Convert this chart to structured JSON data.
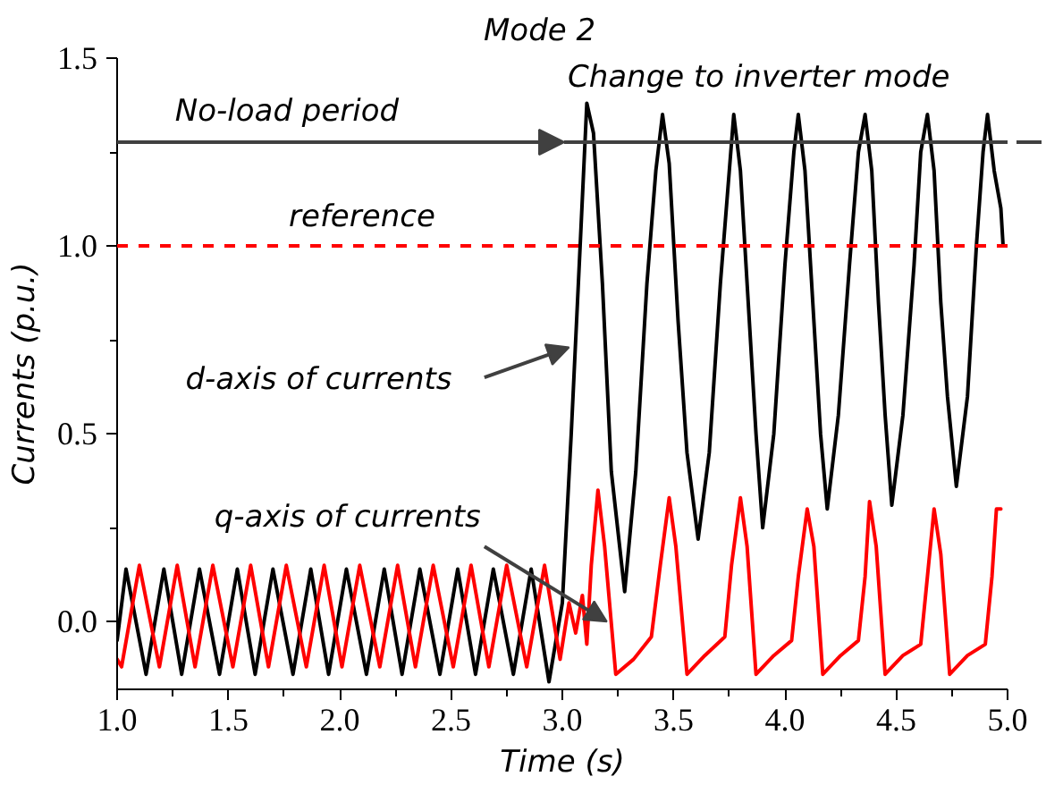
{
  "chart_data": {
    "type": "line",
    "xlabel": "Time (s)",
    "ylabel": "Currents (p.u.)",
    "xlim": [
      1.0,
      5.0
    ],
    "ylim": [
      -0.18,
      1.5
    ],
    "xticks": [
      {
        "value": 1.0,
        "label": "1.0"
      },
      {
        "value": 1.5,
        "label": "1.5"
      },
      {
        "value": 2.0,
        "label": "2.0"
      },
      {
        "value": 2.5,
        "label": "2.5"
      },
      {
        "value": 3.0,
        "label": "3.0"
      },
      {
        "value": 3.5,
        "label": "3.5"
      },
      {
        "value": 4.0,
        "label": "4.0"
      },
      {
        "value": 4.5,
        "label": "4.5"
      },
      {
        "value": 5.0,
        "label": "5.0"
      }
    ],
    "yticks": [
      {
        "value": 0.0,
        "label": "0.0"
      },
      {
        "value": 0.5,
        "label": "0.5"
      },
      {
        "value": 1.0,
        "label": "1.0"
      },
      {
        "value": 1.5,
        "label": "1.5"
      }
    ],
    "grid": false,
    "marker": "none",
    "line_style": "solid",
    "series": [
      {
        "color": "#000000",
        "x": [
          1.0,
          1.04,
          1.13,
          1.21,
          1.29,
          1.37,
          1.46,
          1.54,
          1.62,
          1.7,
          1.79,
          1.87,
          1.95,
          2.03,
          2.12,
          2.2,
          2.28,
          2.36,
          2.45,
          2.53,
          2.61,
          2.69,
          2.78,
          2.86,
          2.94,
          3.0,
          3.04,
          3.08,
          3.11,
          3.14,
          3.18,
          3.22,
          3.28,
          3.33,
          3.38,
          3.42,
          3.45,
          3.48,
          3.52,
          3.56,
          3.61,
          3.66,
          3.71,
          3.75,
          3.77,
          3.8,
          3.84,
          3.87,
          3.9,
          3.95,
          4.0,
          4.04,
          4.06,
          4.09,
          4.13,
          4.16,
          4.19,
          4.24,
          4.29,
          4.33,
          4.36,
          4.39,
          4.42,
          4.45,
          4.48,
          4.53,
          4.58,
          4.61,
          4.64,
          4.67,
          4.7,
          4.73,
          4.77,
          4.82,
          4.86,
          4.89,
          4.91,
          4.94,
          4.97,
          4.98
        ],
        "values": [
          -0.05,
          0.14,
          -0.14,
          0.14,
          -0.14,
          0.14,
          -0.14,
          0.14,
          -0.14,
          0.14,
          -0.14,
          0.14,
          -0.14,
          0.14,
          -0.14,
          0.14,
          -0.14,
          0.14,
          -0.14,
          0.14,
          -0.14,
          0.14,
          -0.14,
          0.14,
          -0.16,
          0.05,
          0.5,
          1.0,
          1.38,
          1.3,
          0.9,
          0.4,
          0.08,
          0.4,
          0.9,
          1.2,
          1.35,
          1.22,
          0.8,
          0.45,
          0.22,
          0.45,
          0.9,
          1.2,
          1.35,
          1.2,
          0.8,
          0.5,
          0.25,
          0.5,
          0.95,
          1.25,
          1.35,
          1.2,
          0.8,
          0.5,
          0.3,
          0.55,
          0.95,
          1.25,
          1.35,
          1.2,
          0.85,
          0.55,
          0.31,
          0.55,
          0.95,
          1.25,
          1.35,
          1.2,
          0.85,
          0.6,
          0.36,
          0.6,
          1.0,
          1.25,
          1.35,
          1.2,
          1.1,
          1.0
        ]
      },
      {
        "color": "#ff0000",
        "x": [
          1.0,
          1.02,
          1.1,
          1.19,
          1.27,
          1.35,
          1.43,
          1.52,
          1.6,
          1.68,
          1.76,
          1.85,
          1.93,
          2.01,
          2.09,
          2.18,
          2.26,
          2.34,
          2.42,
          2.51,
          2.59,
          2.67,
          2.75,
          2.84,
          2.92,
          2.99,
          3.03,
          3.06,
          3.09,
          3.11,
          3.13,
          3.16,
          3.19,
          3.24,
          3.32,
          3.4,
          3.44,
          3.48,
          3.51,
          3.56,
          3.64,
          3.73,
          3.76,
          3.8,
          3.83,
          3.87,
          3.95,
          4.03,
          4.06,
          4.1,
          4.13,
          4.17,
          4.25,
          4.33,
          4.36,
          4.38,
          4.41,
          4.45,
          4.53,
          4.61,
          4.64,
          4.67,
          4.7,
          4.74,
          4.82,
          4.9,
          4.93,
          4.95,
          4.97
        ],
        "values": [
          -0.1,
          -0.12,
          0.15,
          -0.12,
          0.15,
          -0.12,
          0.15,
          -0.12,
          0.15,
          -0.12,
          0.15,
          -0.12,
          0.15,
          -0.12,
          0.15,
          -0.12,
          0.15,
          -0.12,
          0.15,
          -0.12,
          0.15,
          -0.12,
          0.15,
          -0.12,
          0.15,
          -0.1,
          0.05,
          -0.03,
          0.07,
          -0.06,
          0.15,
          0.35,
          0.2,
          -0.14,
          -0.1,
          -0.04,
          0.15,
          0.33,
          0.2,
          -0.14,
          -0.09,
          -0.04,
          0.15,
          0.33,
          0.2,
          -0.14,
          -0.09,
          -0.05,
          0.12,
          0.3,
          0.2,
          -0.14,
          -0.09,
          -0.05,
          0.12,
          0.32,
          0.2,
          -0.14,
          -0.09,
          -0.06,
          0.12,
          0.3,
          0.18,
          -0.14,
          -0.09,
          -0.06,
          0.12,
          0.3,
          0.3
        ]
      }
    ],
    "ref_lines": [
      {
        "axis": "y",
        "value": 1.0,
        "label": "reference",
        "color": "#ff0000",
        "line_style": "dashed"
      }
    ],
    "annotations": [
      "Mode 2",
      "No-load period",
      "Change to inverter mode",
      {
        "text": "d-axis of currents",
        "x": 3.03,
        "y": 0.73
      },
      {
        "text": "q-axis of currents",
        "x": 3.2,
        "y": 0.0
      }
    ]
  }
}
